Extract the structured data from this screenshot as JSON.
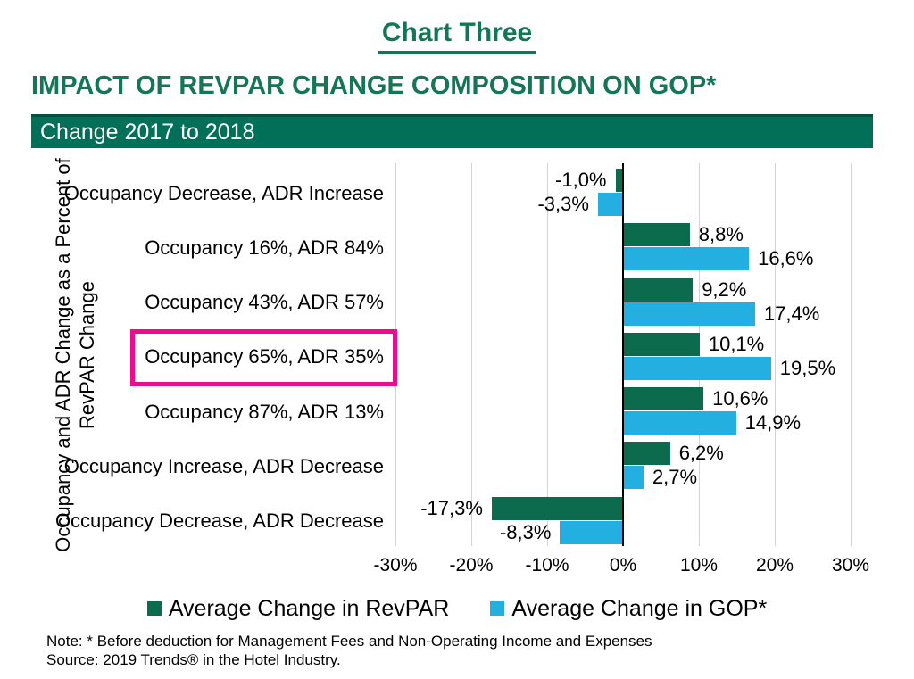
{
  "page": {
    "title": "Chart Three",
    "subtitle": "IMPACT OF REVPAR CHANGE COMPOSITION ON GOP*",
    "banner": "Change 2017 to 2018"
  },
  "chart_data": {
    "type": "bar",
    "orientation": "horizontal",
    "title": "IMPACT OF REVPAR CHANGE COMPOSITION ON GOP*",
    "subtitle": "Change 2017 to 2018",
    "categories": [
      "Occupancy Decrease, ADR Increase",
      "Occupancy 16%, ADR 84%",
      "Occupancy 43%, ADR 57%",
      "Occupancy 65%, ADR 35%",
      "Occupancy 87%, ADR 13%",
      "Occupancy Increase, ADR Decrease",
      "Occupancy Decrease, ADR Decrease"
    ],
    "series": [
      {
        "name": "Average Change in RevPAR",
        "color": "#0D6B4D",
        "values": [
          -1.0,
          8.8,
          9.2,
          10.1,
          10.6,
          6.2,
          -17.3
        ],
        "labels": [
          "-1,0%",
          "8,8%",
          "9,2%",
          "10,1%",
          "10,6%",
          "6,2%",
          "-17,3%"
        ]
      },
      {
        "name": "Average Change in GOP*",
        "color": "#23AFE0",
        "values": [
          -3.3,
          16.6,
          17.4,
          19.5,
          14.9,
          2.7,
          -8.3
        ],
        "labels": [
          "-3,3%",
          "16,6%",
          "17,4%",
          "19,5%",
          "14,9%",
          "2,7%",
          "-8,3%"
        ]
      }
    ],
    "x_ticks": [
      "-30%",
      "-20%",
      "-10%",
      "0%",
      "10%",
      "20%",
      "30%"
    ],
    "xlim": [
      -30,
      30
    ],
    "grid": true,
    "legend_position": "bottom",
    "ylabel_line1": "Occupancy and ADR Change as a Percent of",
    "ylabel_line2": "RevPAR Change",
    "highlight": {
      "category": "Occupancy 65%, ADR 35%",
      "color": "#EB0D8C"
    }
  },
  "notes": {
    "note": "Note: * Before deduction for Management Fees and Non-Operating Income and Expenses",
    "source": "Source: 2019 Trends® in the Hotel Industry."
  }
}
